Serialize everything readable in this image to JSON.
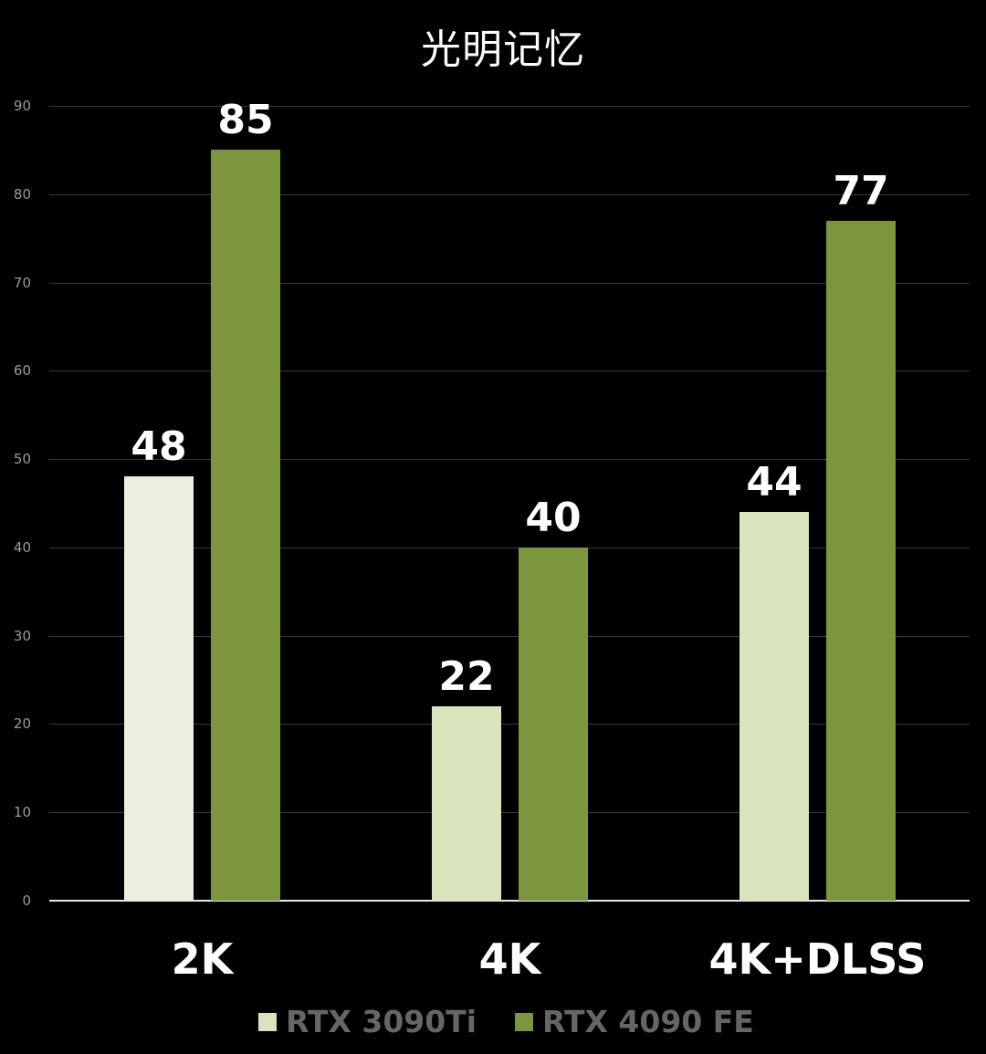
{
  "chart_data": {
    "type": "bar",
    "title": "光明记忆",
    "xlabel": "",
    "ylabel": "",
    "ylim": [
      0,
      90
    ],
    "yticks": [
      0,
      10,
      20,
      30,
      40,
      50,
      60,
      70,
      80,
      90
    ],
    "grid": true,
    "legend_position": "bottom",
    "categories": [
      "2K",
      "4K",
      "4K+DLSS"
    ],
    "series": [
      {
        "name": "RTX 3090Ti",
        "color": "#D9E4BD",
        "values": [
          48,
          22,
          44
        ]
      },
      {
        "name": "RTX 4090 FE",
        "color": "#7B963E",
        "values": [
          85,
          40,
          77
        ]
      }
    ]
  },
  "title": "光明记忆",
  "yticks": [
    "0",
    "10",
    "20",
    "30",
    "40",
    "50",
    "60",
    "70",
    "80",
    "90"
  ],
  "categories": [
    "2K",
    "4K",
    "4K+DLSS"
  ],
  "values": {
    "s1": [
      "48",
      "22",
      "44"
    ],
    "s2": [
      "85",
      "40",
      "77"
    ]
  },
  "legend": {
    "s1": {
      "label": "RTX 3090Ti",
      "color": "#D9E4BD"
    },
    "s2": {
      "label": "RTX 4090 FE",
      "color": "#7B963E"
    }
  },
  "colors": {
    "s1_first_bar": "#ECEFDF",
    "s1": "#D9E4BD",
    "s2": "#7B963E",
    "background": "#000000"
  }
}
